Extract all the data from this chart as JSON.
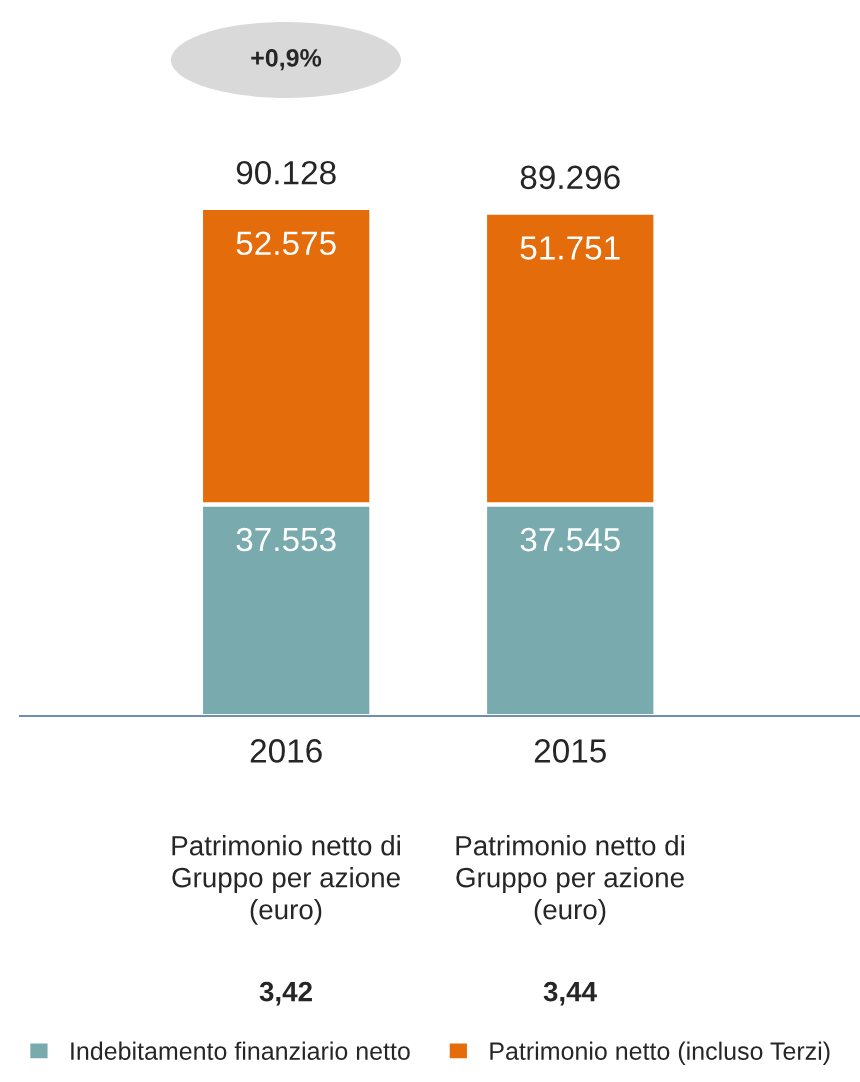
{
  "chart_data": {
    "type": "bar",
    "stacked": true,
    "categories": [
      "2016",
      "2015"
    ],
    "series": [
      {
        "name": "Indebitamento finanziario netto",
        "color": "#78aaae",
        "values": [
          37553,
          37545
        ],
        "value_labels": [
          "37.553",
          "37.545"
        ]
      },
      {
        "name": "Patrimonio netto (incluso Terzi)",
        "color": "#e46c0a",
        "values": [
          52575,
          51751
        ],
        "value_labels": [
          "52.575",
          "51.751"
        ]
      }
    ],
    "totals": [
      "90.128",
      "89.296"
    ],
    "legend": "bottom",
    "annotations": [
      "+0,9%",
      "Patrimonio netto di Gruppo per azione (euro)",
      "Patrimonio netto di Gruppo per azione (euro)",
      "3,42",
      "3,44"
    ]
  }
}
